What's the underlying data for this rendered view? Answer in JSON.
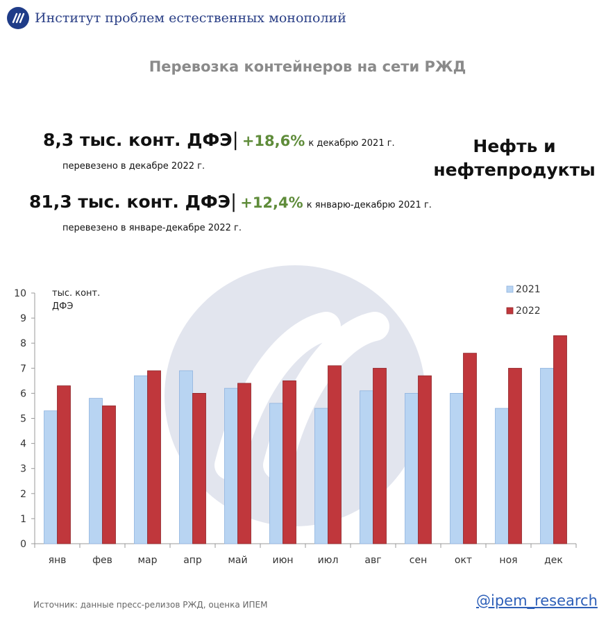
{
  "header": {
    "org_name": "Институт проблем естественных монополий"
  },
  "title": "Перевозка контейнеров на сети РЖД",
  "stats": [
    {
      "value": "8,3 тыс. конт. ДФЭ",
      "separator": "|",
      "change": "+18,6%",
      "comparison": "к декабрю 2021 г.",
      "sub": "перевезено в декабре 2022 г."
    },
    {
      "value": "81,3 тыс. конт. ДФЭ",
      "separator": "|",
      "change": "+12,4%",
      "comparison": "к январю-декабрю 2021 г.",
      "sub": "перевезено в январе-декабре 2022 г."
    }
  ],
  "category": {
    "line1": "Нефть и",
    "line2": "нефтепродукты"
  },
  "chart_data": {
    "type": "bar",
    "unit_label_line1": "тыс. конт.",
    "unit_label_line2": "ДФЭ",
    "categories": [
      "янв",
      "фев",
      "мар",
      "апр",
      "май",
      "июн",
      "июл",
      "авг",
      "сен",
      "окт",
      "ноя",
      "дек"
    ],
    "series": [
      {
        "name": "2021",
        "color": "#b8d4f2",
        "values": [
          5.3,
          5.8,
          6.7,
          6.9,
          6.2,
          5.6,
          5.4,
          6.1,
          6.0,
          6.0,
          5.4,
          7.0
        ]
      },
      {
        "name": "2022",
        "color": "#c0373c",
        "values": [
          6.3,
          5.5,
          6.9,
          6.0,
          6.4,
          6.5,
          7.1,
          7.0,
          6.7,
          7.6,
          7.0,
          8.3
        ]
      }
    ],
    "ylim": [
      0,
      10
    ],
    "yticks": [
      0,
      1,
      2,
      3,
      4,
      5,
      6,
      7,
      8,
      9,
      10
    ],
    "legend_position": "top-right",
    "grid": false
  },
  "footer": {
    "source": "Источник: данные пресс-релизов РЖД, оценка ИПЕМ",
    "handle": "@ipem_research"
  }
}
